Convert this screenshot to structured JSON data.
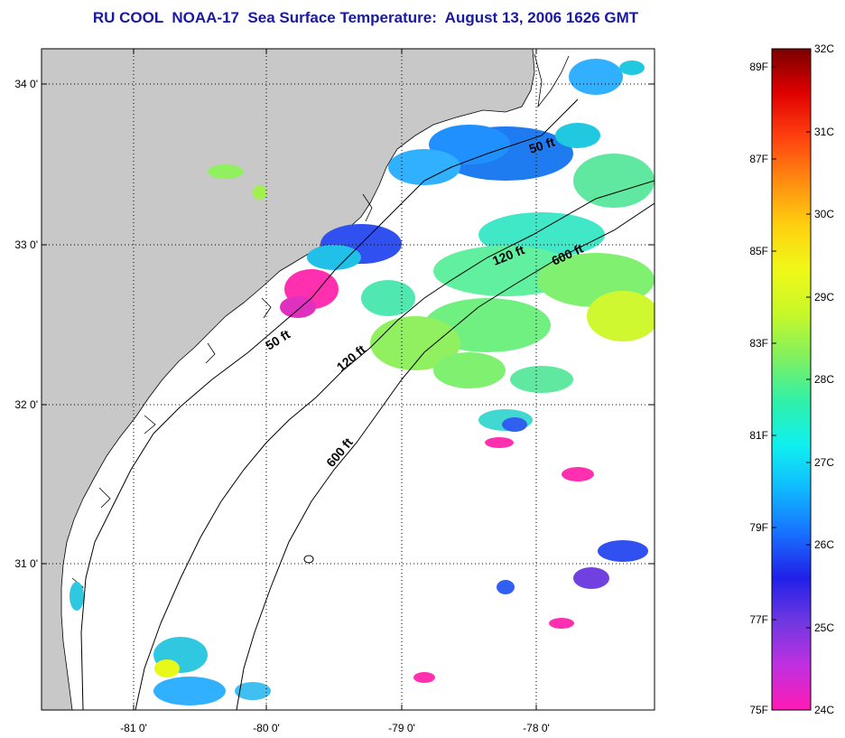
{
  "title": "RU COOL  NOAA-17  Sea Surface Temperature:  August 13, 2006 1626 GMT",
  "colors": {
    "land": "#c8c8c8",
    "title": "#1a1aa0",
    "frame": "#000000"
  },
  "map": {
    "lon_labels": [
      "-81 0'",
      "-80 0'",
      "-79 0'",
      "-78 0'"
    ],
    "lat_labels": [
      "34 0'",
      "33 0'",
      "32 0'",
      "31 0'"
    ],
    "isobath_labels": [
      "50 ft",
      "120 ft",
      "600 ft",
      "50 ft",
      "120 ft",
      "600 ft"
    ]
  },
  "colorbar": {
    "fahrenheit_labels": [
      "89F",
      "87F",
      "85F",
      "83F",
      "81F",
      "79F",
      "77F",
      "75F"
    ],
    "celsius_labels": [
      "32C",
      "31C",
      "30C",
      "29C",
      "28C",
      "27C",
      "26C",
      "25C",
      "24C"
    ],
    "gradient_colors": [
      "#ff1ab4",
      "#c030e0",
      "#7038e0",
      "#2020e8",
      "#1870ff",
      "#10b8ff",
      "#10f0f0",
      "#30f0a8",
      "#80f060",
      "#e8f818",
      "#ffd010",
      "#ff8c10",
      "#ff4010",
      "#ff0000",
      "#c00000",
      "#7a0000"
    ]
  }
}
